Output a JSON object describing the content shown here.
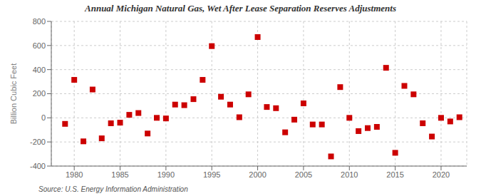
{
  "chart_data": {
    "type": "scatter",
    "title": "Annual Michigan Natural Gas, Wet After Lease Separation Reserves Adjustments",
    "ylabel": "Billion Cubic Feet",
    "annotations": [
      "Source: U.S. Energy Information Administration"
    ],
    "color": "#cc0000",
    "marker": "square",
    "grid": true,
    "xlim": [
      1977.5,
      2022.8
    ],
    "xticks": [
      1980,
      1985,
      1990,
      1995,
      2000,
      2005,
      2010,
      2015,
      2020
    ],
    "ylim": [
      -400,
      800
    ],
    "yticks": [
      -400,
      -200,
      0,
      200,
      400,
      600,
      800
    ],
    "x": [
      1979,
      1980,
      1981,
      1982,
      1983,
      1984,
      1985,
      1986,
      1987,
      1988,
      1989,
      1990,
      1991,
      1992,
      1993,
      1994,
      1995,
      1996,
      1997,
      1998,
      1999,
      2000,
      2001,
      2002,
      2003,
      2004,
      2005,
      2006,
      2007,
      2008,
      2009,
      2010,
      2011,
      2012,
      2013,
      2014,
      2015,
      2016,
      2017,
      2018,
      2019,
      2020,
      2021,
      2022
    ],
    "values": [
      -50,
      315,
      -195,
      235,
      -170,
      -45,
      -40,
      25,
      40,
      -130,
      0,
      -5,
      110,
      105,
      155,
      315,
      595,
      175,
      110,
      5,
      195,
      670,
      90,
      80,
      -120,
      -15,
      120,
      -55,
      -55,
      -320,
      255,
      0,
      -110,
      -85,
      -75,
      415,
      -290,
      265,
      195,
      -45,
      -155,
      0,
      -30,
      5
    ]
  }
}
